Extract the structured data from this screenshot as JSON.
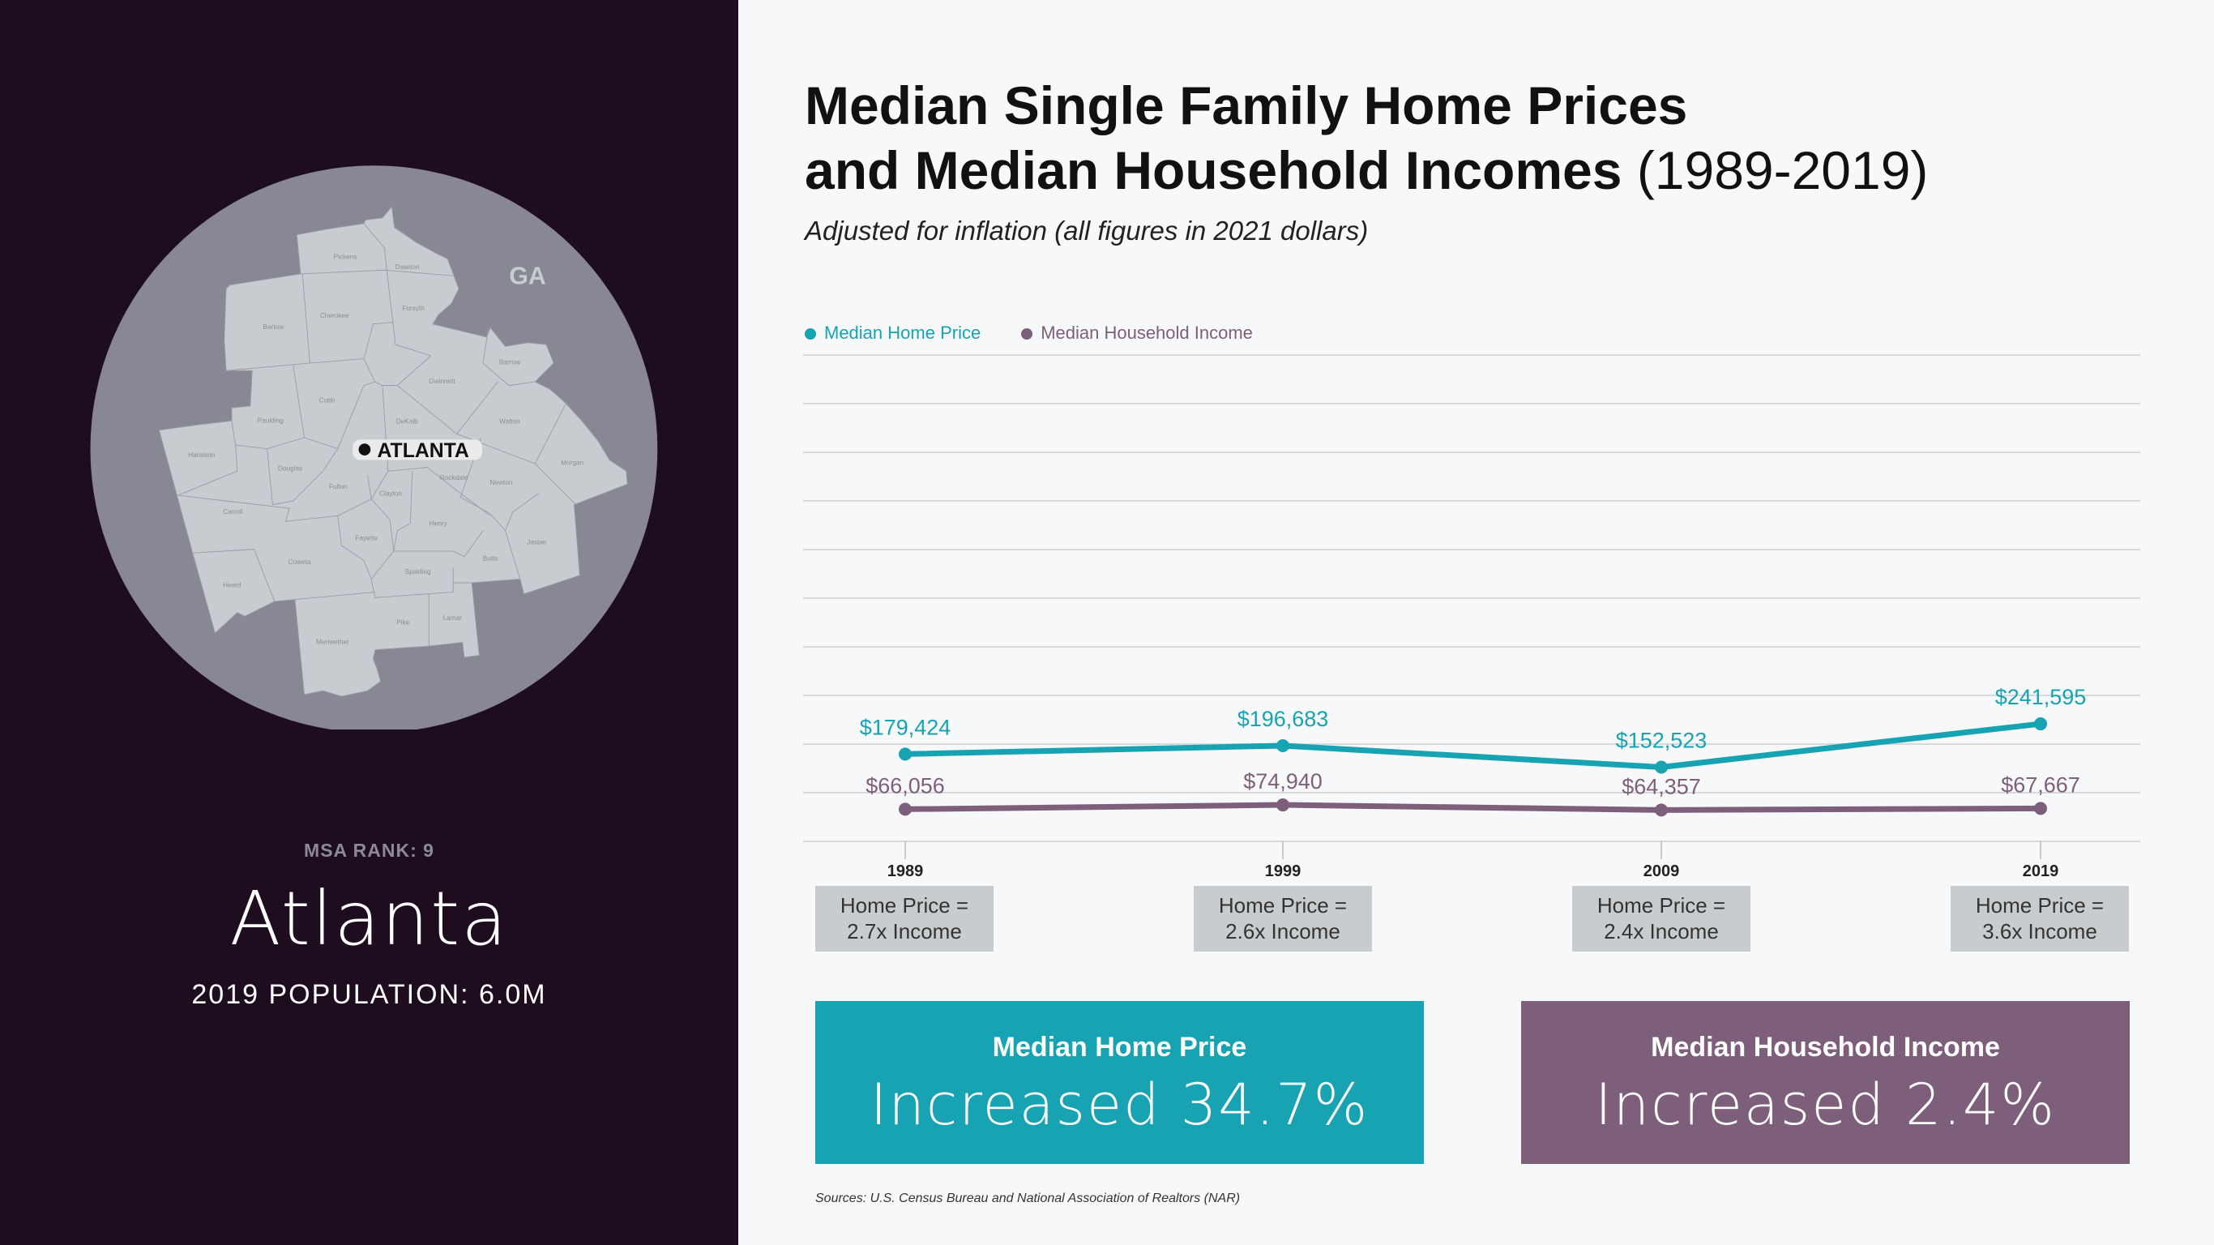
{
  "colors": {
    "home": "#17a3b2",
    "income": "#7e5f7b",
    "left_bg": "#1e0d1f",
    "circle": "#878894",
    "county": "#c8ccd0"
  },
  "left": {
    "state": "GA",
    "city_marker": "ATLANTA",
    "counties": [
      "Pickens",
      "Dawson",
      "Forsyth",
      "Cherokee",
      "Bartow",
      "Barrow",
      "Gwinnett",
      "Cobb",
      "Paulding",
      "DeKalb",
      "Walton",
      "Haralson",
      "Douglas",
      "Morgan",
      "Rockdale",
      "Newton",
      "Fulton",
      "Clayton",
      "Carroll",
      "Henry",
      "Fayette",
      "Jasper",
      "Butts",
      "Coweta",
      "Spalding",
      "Heard",
      "Lamar",
      "Pike",
      "Meriwether"
    ],
    "msa_rank": "MSA RANK: 9",
    "city": "Atlanta",
    "population": "2019 POPULATION: 6.0M"
  },
  "header": {
    "title_line1": "Median Single Family Home Prices",
    "title_line2": "and Median Household Incomes",
    "title_years": "(1989-2019)",
    "subtitle": "Adjusted for inflation (all figures in 2021 dollars)"
  },
  "chart_data": {
    "type": "line",
    "categories": [
      "1989",
      "1999",
      "2009",
      "2019"
    ],
    "series": [
      {
        "name": "Median Home Price",
        "values": [
          179424,
          196683,
          152523,
          241595
        ],
        "labels": [
          "$179,424",
          "$196,683",
          "$152,523",
          "$241,595"
        ],
        "color": "#17a3b2"
      },
      {
        "name": "Median Household Income",
        "values": [
          66056,
          74940,
          64357,
          67667
        ],
        "labels": [
          "$66,056",
          "$74,940",
          "$64,357",
          "$67,667"
        ],
        "color": "#7e5f7b"
      }
    ],
    "ylim": [
      0,
      1000000
    ],
    "grid": true,
    "y_tick_labels_shown": false,
    "legend": "top-left"
  },
  "ratios": [
    {
      "line1": "Home Price =",
      "line2": "2.7x Income"
    },
    {
      "line1": "Home Price =",
      "line2": "2.6x Income"
    },
    {
      "line1": "Home Price =",
      "line2": "2.4x Income"
    },
    {
      "line1": "Home Price =",
      "line2": "3.6x Income"
    }
  ],
  "summary": [
    {
      "title": "Median Home Price",
      "value": "Increased 34.7%"
    },
    {
      "title": "Median Household Income",
      "value": "Increased 2.4%"
    }
  ],
  "source": "Sources: U.S. Census Bureau and National Association of Realtors (NAR)"
}
